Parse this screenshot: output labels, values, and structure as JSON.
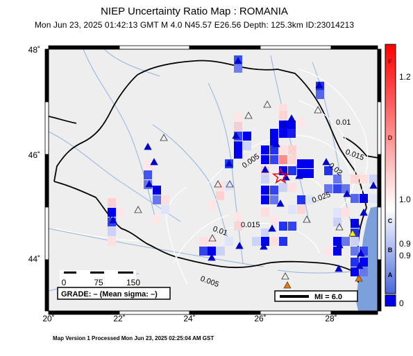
{
  "title": "NIEP Uncertainty Ratio Map : ROMANIA",
  "subtitle": "Mon Jun 23, 2025 01:42:13 GMT   M 4.0   N45.57 E26.56   Depth: 125.3km   ID:23014213",
  "footer": "Map Version 1 Processed Mon Jun 23, 2025 02:25:04 AM GST",
  "axes": {
    "x_ticks": [
      "20˚",
      "22˚",
      "24˚",
      "26˚",
      "28˚"
    ],
    "y_ticks": [
      "48˚",
      "46˚",
      "44˚"
    ],
    "lon_range": [
      20,
      29.3
    ],
    "lat_range": [
      43,
      48
    ]
  },
  "epicenter": {
    "lon": 26.56,
    "lat": 45.57,
    "symbol": "star-icon"
  },
  "contour_labels": [
    "0.01",
    "0.015",
    "0.005",
    "0.02",
    "0.025",
    "0.015",
    "0.01",
    "0.005"
  ],
  "scale_bar": {
    "labels": [
      "0",
      "75",
      "150"
    ],
    "unit": ""
  },
  "grade_box": "GRADE: – (Mean sigma: –)",
  "mi_legend": "MI = 6.0",
  "colorbar": {
    "letters": [
      "F",
      "D",
      "C",
      "B",
      "A"
    ],
    "values": [
      "1.2",
      "1.0",
      "0.9",
      "0.9",
      "0"
    ],
    "colors": {
      "top": "#ff0000",
      "mid": "#ffffff",
      "low": "#6f8fe8",
      "bottom": "#0000ee"
    }
  },
  "colors": {
    "land": "#eeeeee",
    "sea": "#7ba0dc",
    "rivers": "#8fb3e0",
    "contours": "#ffffff",
    "border": "#000000"
  }
}
